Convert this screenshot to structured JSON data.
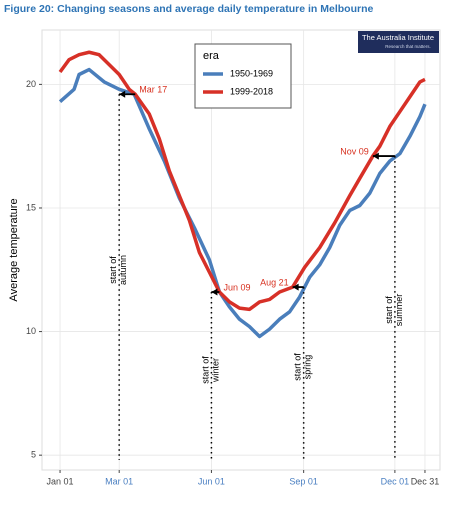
{
  "chart_data": {
    "type": "line",
    "title": "Figure 20: Changing seasons and average daily temperature in Melbourne",
    "logo": {
      "name": "The Australia Institute",
      "tagline": "Research that matters."
    },
    "y_label": "Average temperature",
    "legend_title": "era",
    "legend_position": "top-center",
    "grid": true,
    "xlim": [
      -17,
      380
    ],
    "xticks": [
      {
        "value": 1,
        "label": "Jan 01"
      },
      {
        "value": 60,
        "label": "Mar 01"
      },
      {
        "value": 152,
        "label": "Jun 01"
      },
      {
        "value": 244,
        "label": "Sep 01"
      },
      {
        "value": 335,
        "label": "Dec 01"
      },
      {
        "value": 365,
        "label": "Dec 31"
      }
    ],
    "ylim": [
      4.4,
      22.2
    ],
    "yticks": [
      5,
      10,
      15,
      20
    ],
    "season_color": "#4a7fc1",
    "annotation_color": "#d7301f",
    "seasons": [
      {
        "label": "start of autumn",
        "start": 60,
        "value": 19.6,
        "date": 76,
        "date_label": "Mar 17"
      },
      {
        "label": "start of winter",
        "start": 152,
        "value": 11.6,
        "date": 160,
        "date_label": "Jun 09"
      },
      {
        "label": "start of spring",
        "start": 244,
        "value": 11.8,
        "date": 233,
        "date_label": "Aug 21"
      },
      {
        "label": "start of summer",
        "start": 335,
        "value": 17.1,
        "date": 313,
        "date_label": "Nov 09"
      }
    ],
    "series": [
      {
        "name": "1950-1969",
        "color": "#4a7ebb",
        "x": [
          1,
          15,
          20,
          30,
          45,
          60,
          75,
          90,
          105,
          120,
          135,
          150,
          160,
          170,
          180,
          190,
          200,
          210,
          220,
          230,
          240,
          250,
          260,
          270,
          280,
          290,
          300,
          310,
          320,
          330,
          340,
          350,
          360,
          365
        ],
        "values": [
          19.3,
          19.8,
          20.4,
          20.6,
          20.1,
          19.8,
          19.6,
          18.2,
          16.9,
          15.4,
          14.2,
          12.9,
          11.6,
          11.0,
          10.5,
          10.2,
          9.8,
          10.1,
          10.5,
          10.8,
          11.4,
          12.2,
          12.7,
          13.4,
          14.3,
          14.9,
          15.1,
          15.6,
          16.4,
          16.9,
          17.2,
          17.9,
          18.7,
          19.2
        ]
      },
      {
        "name": "1999-2018",
        "color": "#d73027",
        "x": [
          1,
          10,
          20,
          30,
          40,
          50,
          60,
          70,
          76,
          90,
          100,
          110,
          120,
          130,
          140,
          150,
          160,
          170,
          180,
          190,
          200,
          210,
          220,
          233,
          245,
          260,
          275,
          290,
          300,
          313,
          320,
          330,
          340,
          350,
          360,
          365
        ],
        "values": [
          20.5,
          21.0,
          21.2,
          21.3,
          21.2,
          20.8,
          20.4,
          19.8,
          19.6,
          18.8,
          17.8,
          16.5,
          15.5,
          14.5,
          13.2,
          12.4,
          11.6,
          11.2,
          10.95,
          10.9,
          11.2,
          11.3,
          11.6,
          11.8,
          12.6,
          13.4,
          14.4,
          15.5,
          16.2,
          17.1,
          17.5,
          18.3,
          18.9,
          19.5,
          20.1,
          20.2
        ]
      }
    ]
  }
}
